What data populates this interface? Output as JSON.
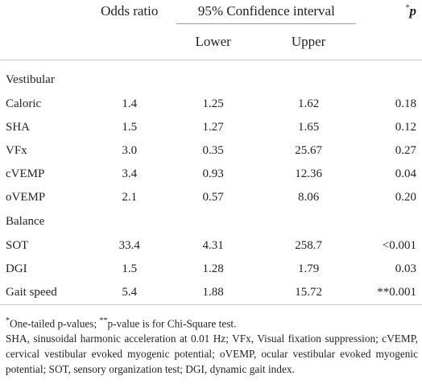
{
  "header": {
    "col_odds": "Odds ratio",
    "col_ci": "95% Confidence interval",
    "col_p_star": "*",
    "col_p": "p",
    "col_lower": "Lower",
    "col_upper": "Upper"
  },
  "groups": [
    {
      "label": "Vestibular",
      "rows": [
        {
          "name": "Caloric",
          "odds": "1.4",
          "lower": "1.25",
          "upper": "1.62",
          "p": "0.18"
        },
        {
          "name": "SHA",
          "odds": "1.5",
          "lower": "1.27",
          "upper": "1.65",
          "p": "0.12"
        },
        {
          "name": "VFx",
          "odds": "3.0",
          "lower": "0.35",
          "upper": "25.67",
          "p": "0.27"
        },
        {
          "name": "cVEMP",
          "odds": "3.4",
          "lower": "0.93",
          "upper": "12.36",
          "p": "0.04"
        },
        {
          "name": "oVEMP",
          "odds": "2.1",
          "lower": "0.57",
          "upper": "8.06",
          "p": "0.20"
        }
      ]
    },
    {
      "label": "Balance",
      "rows": [
        {
          "name": "SOT",
          "odds": "33.4",
          "lower": "4.31",
          "upper": "258.7",
          "p": "<0.001"
        },
        {
          "name": "DGI",
          "odds": "1.5",
          "lower": "1.28",
          "upper": "1.79",
          "p": "0.03"
        },
        {
          "name": "Gait speed",
          "odds": "5.4",
          "lower": "1.88",
          "upper": "15.72",
          "p": "**0.001"
        }
      ]
    }
  ],
  "footnotes": {
    "note1_mark": "*",
    "note1_text": "One-tailed p-values; ",
    "note2_mark": "**",
    "note2_text": "p-value is for Chi-Square test.",
    "abbreviations": "SHA, sinusoidal harmonic acceleration at 0.01 Hz; VFx, Visual fixation suppression; cVEMP, cervical vestibular evoked myogenic potential; oVEMP, ocular vestibular evoked myogenic potential; SOT, sensory organization test; DGI, dynamic gait index."
  }
}
